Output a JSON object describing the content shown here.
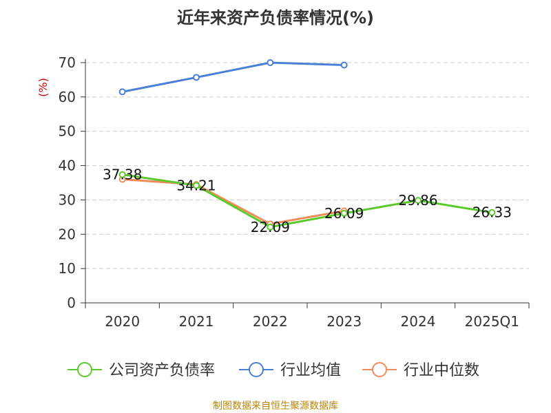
{
  "chart_data": {
    "type": "line",
    "title": "近年来资产负债率情况(%)",
    "ylabel": "(%)",
    "categories": [
      "2020",
      "2021",
      "2022",
      "2023",
      "2024",
      "2025Q1"
    ],
    "ylim": [
      0,
      70
    ],
    "yticks": [
      0,
      10,
      20,
      30,
      40,
      50,
      60,
      70
    ],
    "grid": true,
    "legend_position": "bottom",
    "series": [
      {
        "name": "公司资产负债率",
        "color": "#5bc92b",
        "values": [
          37.38,
          34.21,
          22.09,
          26.09,
          29.86,
          26.33
        ],
        "labels": [
          "37.38",
          "34.21",
          "22.09",
          "26.09",
          "29.86",
          "26.33"
        ]
      },
      {
        "name": "行业均值",
        "color": "#4a7fd8",
        "values": [
          61.5,
          65.7,
          70.0,
          69.3,
          null,
          null
        ]
      },
      {
        "name": "行业中位数",
        "color": "#f08c5a",
        "values": [
          36.0,
          34.5,
          23.0,
          26.8,
          null,
          null
        ]
      }
    ]
  },
  "footer": {
    "source": "制图数据来自恒生聚源数据库"
  },
  "colors": {
    "axis": "#333333",
    "grid": "#cccccc",
    "ylabel": "#cc0000",
    "footer": "#b8860b"
  }
}
